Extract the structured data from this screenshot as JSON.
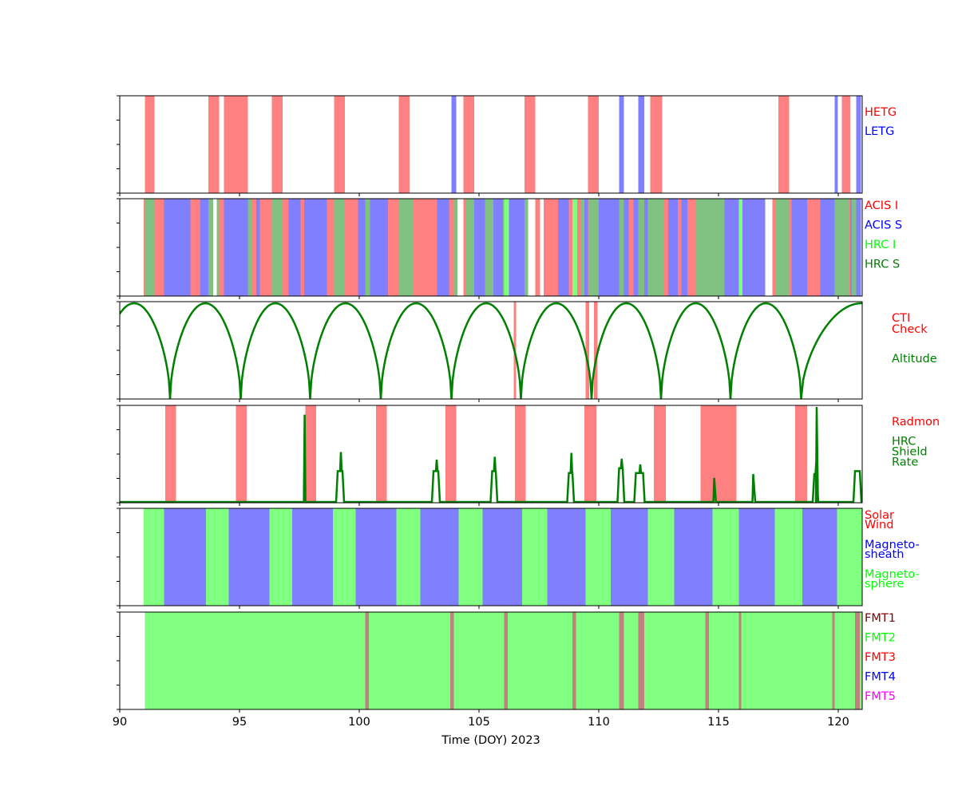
{
  "chart_data": {
    "type": "timeline",
    "xlabel": "Time (DOY) 2023",
    "xlim": [
      90,
      121
    ],
    "xticks": [
      90,
      95,
      100,
      105,
      110,
      115,
      120
    ],
    "panels": [
      {
        "id": "gratings",
        "legend": [
          {
            "text": "HETG",
            "color": "#ff0000"
          },
          {
            "text": "LETG",
            "color": "#0000ff"
          }
        ],
        "intervals": [
          {
            "cls": "HETG",
            "color": "#ff8080",
            "spans": [
              [
                91.05,
                91.45
              ],
              [
                93.7,
                94.15
              ],
              [
                94.35,
                95.35
              ],
              [
                96.35,
                96.8
              ],
              [
                98.95,
                99.4
              ],
              [
                101.65,
                102.1
              ],
              [
                104.35,
                104.8
              ],
              [
                106.9,
                107.35
              ],
              [
                109.55,
                110.0
              ],
              [
                112.15,
                112.65
              ],
              [
                117.5,
                117.95
              ],
              [
                120.15,
                120.5
              ]
            ]
          },
          {
            "cls": "LETG",
            "color": "#8080ff",
            "spans": [
              [
                103.85,
                104.05
              ],
              [
                110.85,
                111.05
              ],
              [
                111.65,
                111.9
              ],
              [
                119.85,
                119.98
              ],
              [
                120.75,
                120.95
              ]
            ]
          }
        ]
      },
      {
        "id": "instruments",
        "legend": [
          {
            "text": "ACIS I",
            "color": "#ff0000"
          },
          {
            "text": "ACIS S",
            "color": "#0000ff"
          },
          {
            "text": "HRC I",
            "color": "#00ff00"
          },
          {
            "text": "HRC S",
            "color": "#008000"
          }
        ],
        "intervals": [
          {
            "cls": "ACIS I",
            "color": "#ff8080",
            "spans": [
              [
                91.0,
                91.05
              ],
              [
                91.45,
                91.85
              ],
              [
                92.95,
                93.35
              ],
              [
                94.15,
                94.35
              ],
              [
                95.5,
                95.7
              ],
              [
                95.85,
                96.35
              ],
              [
                96.8,
                97.05
              ],
              [
                97.55,
                97.7
              ],
              [
                98.65,
                98.95
              ],
              [
                99.4,
                99.95
              ],
              [
                101.2,
                101.65
              ],
              [
                102.25,
                103.25
              ],
              [
                103.75,
                103.95
              ],
              [
                104.35,
                104.45
              ],
              [
                106.9,
                107.05
              ],
              [
                107.35,
                107.55
              ],
              [
                107.7,
                108.3
              ],
              [
                108.75,
                108.9
              ],
              [
                109.1,
                109.25
              ],
              [
                109.55,
                109.6
              ],
              [
                111.25,
                111.45
              ],
              [
                112.7,
                112.9
              ],
              [
                113.3,
                113.45
              ],
              [
                113.7,
                114.05
              ],
              [
                117.25,
                117.4
              ],
              [
                117.95,
                118.05
              ],
              [
                118.7,
                119.25
              ],
              [
                120.45,
                120.55
              ]
            ]
          },
          {
            "cls": "ACIS S",
            "color": "#8080ff",
            "spans": [
              [
                91.85,
                92.95
              ],
              [
                93.35,
                93.7
              ],
              [
                94.35,
                95.35
              ],
              [
                95.7,
                95.85
              ],
              [
                97.05,
                97.55
              ],
              [
                97.7,
                98.65
              ],
              [
                99.95,
                100.25
              ],
              [
                100.45,
                101.2
              ],
              [
                103.25,
                103.75
              ],
              [
                103.95,
                104.05
              ],
              [
                104.8,
                105.25
              ],
              [
                105.6,
                106.0
              ],
              [
                106.25,
                106.9
              ],
              [
                108.3,
                108.75
              ],
              [
                109.4,
                109.55
              ],
              [
                110.0,
                110.85
              ],
              [
                111.05,
                111.25
              ],
              [
                111.45,
                111.65
              ],
              [
                111.9,
                112.05
              ],
              [
                112.9,
                113.3
              ],
              [
                113.45,
                113.7
              ],
              [
                115.25,
                115.85
              ],
              [
                116.0,
                116.95
              ],
              [
                118.05,
                118.7
              ],
              [
                119.25,
                119.85
              ],
              [
                120.5,
                120.55
              ],
              [
                120.75,
                120.95
              ]
            ]
          },
          {
            "cls": "HRC I",
            "color": "#80ff80",
            "spans": [
              [
                106.05,
                106.25
              ],
              [
                108.9,
                109.1
              ],
              [
                115.85,
                116.0
              ]
            ]
          },
          {
            "cls": "HRC S",
            "color": "#80c080",
            "spans": [
              [
                91.05,
                91.45
              ],
              [
                93.7,
                93.9
              ],
              [
                94.05,
                94.15
              ],
              [
                95.35,
                95.5
              ],
              [
                96.35,
                96.8
              ],
              [
                98.95,
                99.4
              ],
              [
                100.25,
                100.45
              ],
              [
                101.65,
                102.25
              ],
              [
                103.95,
                104.1
              ],
              [
                104.45,
                104.8
              ],
              [
                105.25,
                105.6
              ],
              [
                106.0,
                106.05
              ],
              [
                106.9,
                107.05
              ],
              [
                109.25,
                109.4
              ],
              [
                109.6,
                110.0
              ],
              [
                110.85,
                111.05
              ],
              [
                111.65,
                111.9
              ],
              [
                112.05,
                112.7
              ],
              [
                114.05,
                115.25
              ],
              [
                117.4,
                117.95
              ],
              [
                119.85,
                120.45
              ],
              [
                120.55,
                120.75
              ]
            ]
          }
        ]
      },
      {
        "id": "altitude",
        "legend": [
          {
            "text": "CTI",
            "color": "#ff0000"
          },
          {
            "text": "Check",
            "color": "#ff0000"
          },
          {
            "text": "Altitude",
            "color": "#008000"
          }
        ],
        "altitude_minima": [
          92.1,
          95.05,
          97.95,
          100.9,
          103.85,
          106.75,
          109.7,
          112.6,
          115.5,
          118.45
        ],
        "cti_spans": [
          [
            106.45,
            106.55
          ],
          [
            109.45,
            109.6
          ],
          [
            109.8,
            109.95
          ]
        ]
      },
      {
        "id": "radiation",
        "legend": [
          {
            "text": "Radmon",
            "color": "#ff0000"
          },
          {
            "text": "HRC",
            "color": "#008000"
          },
          {
            "text": "Shield",
            "color": "#008000"
          },
          {
            "text": "Rate",
            "color": "#008000"
          }
        ],
        "radmon_spans": [
          [
            91.9,
            92.35
          ],
          [
            94.85,
            95.3
          ],
          [
            97.75,
            98.2
          ],
          [
            100.7,
            101.15
          ],
          [
            103.6,
            104.05
          ],
          [
            106.5,
            106.95
          ],
          [
            109.4,
            109.9
          ],
          [
            112.3,
            112.8
          ],
          [
            114.25,
            115.75
          ],
          [
            118.2,
            118.7
          ]
        ],
        "hrc_rate_events": [
          {
            "start": 97.72,
            "end": 97.72,
            "peak": 0.92,
            "spike": true
          },
          {
            "start": 99.1,
            "end": 99.3,
            "peak": 0.33,
            "spike_val": 0.53
          },
          {
            "start": 103.1,
            "end": 103.3,
            "peak": 0.33,
            "spike_val": 0.45
          },
          {
            "start": 105.55,
            "end": 105.7,
            "peak": 0.33,
            "spike_val": 0.48
          },
          {
            "start": 108.75,
            "end": 108.9,
            "peak": 0.31,
            "spike_val": 0.52
          },
          {
            "start": 110.85,
            "end": 111.0,
            "peak": 0.36,
            "spike_val": 0.46
          },
          {
            "start": 111.55,
            "end": 111.85,
            "peak": 0.31,
            "spike_val": 0.4
          },
          {
            "start": 114.82,
            "end": 114.86,
            "peak": 0.26,
            "spike": true
          },
          {
            "start": 116.45,
            "end": 116.5,
            "peak": 0.3,
            "spike": true
          },
          {
            "start": 119.0,
            "end": 119.1,
            "peak": 0.3,
            "spike_val": 0.44
          },
          {
            "start": 119.1,
            "end": 119.12,
            "peak": 1.0,
            "spike": true
          },
          {
            "start": 120.7,
            "end": 120.9,
            "peak": 0.33
          }
        ]
      },
      {
        "id": "regions",
        "legend": [
          {
            "text": "Solar",
            "color": "#ff0000"
          },
          {
            "text": "Wind",
            "color": "#ff0000"
          },
          {
            "text": "Magneto-",
            "color": "#0000ff"
          },
          {
            "text": "sheath",
            "color": "#0000ff"
          },
          {
            "text": "Magneto-",
            "color": "#00ff00"
          },
          {
            "text": "sphere",
            "color": "#00ff00"
          }
        ],
        "intervals": [
          {
            "cls": "Magnetosphere",
            "color": "#80ff80",
            "spans": [
              [
                91.0,
                91.85
              ],
              [
                93.6,
                94.55
              ],
              [
                96.25,
                97.2
              ],
              [
                98.9,
                99.85
              ],
              [
                101.55,
                102.55
              ],
              [
                104.15,
                105.15
              ],
              [
                106.8,
                107.85
              ],
              [
                109.45,
                110.5
              ],
              [
                112.05,
                113.15
              ],
              [
                114.75,
                115.85
              ],
              [
                117.35,
                118.5
              ],
              [
                119.95,
                121.0
              ]
            ]
          },
          {
            "cls": "Magnetosheath",
            "color": "#8080ff",
            "spans": [
              [
                91.85,
                93.6
              ],
              [
                94.55,
                96.25
              ],
              [
                97.2,
                98.9
              ],
              [
                99.85,
                101.55
              ],
              [
                102.55,
                104.15
              ],
              [
                105.15,
                106.8
              ],
              [
                107.85,
                109.45
              ],
              [
                110.5,
                112.05
              ],
              [
                113.15,
                114.75
              ],
              [
                115.85,
                117.35
              ],
              [
                118.5,
                119.95
              ]
            ]
          }
        ]
      },
      {
        "id": "formats",
        "legend": [
          {
            "text": "FMT1",
            "color": "#800000"
          },
          {
            "text": "FMT2",
            "color": "#00ff00"
          },
          {
            "text": "FMT3",
            "color": "#ff0000"
          },
          {
            "text": "FMT4",
            "color": "#0000ff"
          },
          {
            "text": "FMT5",
            "color": "#ff00ff"
          }
        ],
        "intervals": [
          {
            "cls": "FMT2",
            "color": "#80ff80",
            "spans": [
              [
                91.05,
                121.0
              ]
            ]
          },
          {
            "cls": "FMT1",
            "color": "#c08080",
            "spans": [
              [
                100.25,
                100.4
              ],
              [
                103.8,
                103.95
              ],
              [
                106.05,
                106.2
              ],
              [
                108.9,
                109.05
              ],
              [
                110.85,
                111.05
              ],
              [
                111.65,
                111.9
              ],
              [
                114.45,
                114.6
              ],
              [
                115.85,
                115.95
              ],
              [
                119.75,
                119.85
              ],
              [
                120.7,
                120.9
              ]
            ]
          }
        ]
      }
    ]
  }
}
